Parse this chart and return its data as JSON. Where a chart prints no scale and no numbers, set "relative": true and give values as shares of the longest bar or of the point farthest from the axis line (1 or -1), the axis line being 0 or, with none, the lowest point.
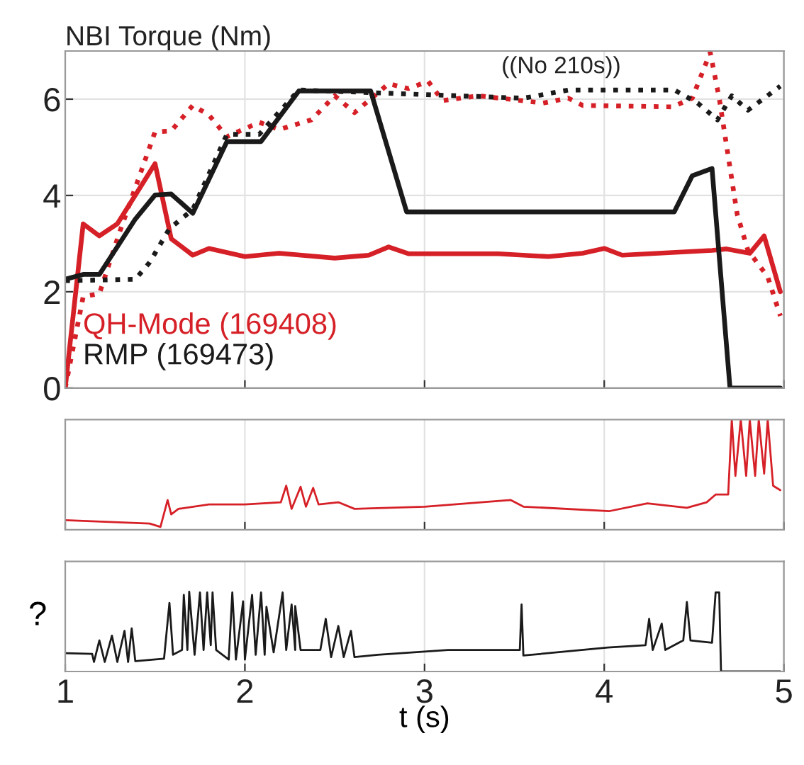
{
  "chart_data": [
    {
      "type": "line",
      "ylabel": "NBI Torque (Nm)",
      "xlim": [
        1,
        5
      ],
      "xticks": [
        1,
        2,
        3,
        4,
        5
      ],
      "ylim": [
        0,
        7
      ],
      "yticks": [
        0,
        2,
        4,
        6
      ],
      "grid": true,
      "legend": "bottom left",
      "tick_labels": "y",
      "annotations": [
        "((No 210s))"
      ],
      "series": [
        {
          "name": "QH-Mode (169408)",
          "color": "#d62027",
          "line_style": "solid",
          "x": [
            1,
            1.1,
            1.19,
            1.29,
            1.5,
            1.59,
            1.71,
            1.8,
            2.0,
            2.19,
            2.5,
            2.69,
            2.8,
            2.91,
            3.41,
            3.69,
            3.88,
            4.0,
            4.1,
            4.6,
            4.68,
            4.81,
            4.89,
            4.98
          ],
          "values": [
            0,
            3.41,
            3.16,
            3.41,
            4.66,
            3.1,
            2.76,
            2.9,
            2.73,
            2.8,
            2.7,
            2.76,
            2.93,
            2.79,
            2.79,
            2.73,
            2.8,
            2.9,
            2.76,
            2.86,
            2.89,
            2.8,
            3.16,
            2.0
          ]
        },
        {
          "color": "#d62027",
          "line_style": "dotted",
          "x": [
            1,
            1.1,
            1.19,
            1.3,
            1.5,
            1.59,
            1.71,
            1.8,
            1.9,
            2.08,
            2.19,
            2.37,
            2.5,
            2.61,
            2.8,
            2.91,
            3.02,
            3.1,
            3.3,
            3.66,
            3.8,
            3.88,
            4.38,
            4.49,
            4.59,
            4.64,
            4.74,
            4.8,
            4.91,
            4.98
          ],
          "values": [
            0,
            1.9,
            1.96,
            3.21,
            5.32,
            5.34,
            5.87,
            5.67,
            5.22,
            5.52,
            5.37,
            5.57,
            6.07,
            5.72,
            6.32,
            6.22,
            6.37,
            5.97,
            6.07,
            5.92,
            6.02,
            5.87,
            5.84,
            6.02,
            6.97,
            6.02,
            3.61,
            2.86,
            2.31,
            1.5
          ]
        },
        {
          "name": "RMP (169473)",
          "color": "#1a1a1a",
          "line_style": "solid",
          "x": [
            1,
            1.1,
            1.19,
            1.39,
            1.5,
            1.59,
            1.71,
            1.9,
            2.09,
            2.3,
            2.7,
            2.9,
            4.39,
            4.49,
            4.6,
            4.7,
            4.98
          ],
          "values": [
            2.26,
            2.36,
            2.36,
            3.51,
            4.01,
            4.03,
            3.63,
            5.12,
            5.12,
            6.17,
            6.17,
            3.66,
            3.66,
            4.41,
            4.56,
            0,
            0
          ]
        },
        {
          "color": "#1a1a1a",
          "line_style": "dotted",
          "x": [
            1,
            1.39,
            1.47,
            1.58,
            1.71,
            1.9,
            2.08,
            2.3,
            3.55,
            3.8,
            4.39,
            4.52,
            4.63,
            4.71,
            4.8,
            4.98
          ],
          "values": [
            2.23,
            2.26,
            2.61,
            3.31,
            3.71,
            5.27,
            5.27,
            6.19,
            6.02,
            6.19,
            6.19,
            5.92,
            5.57,
            6.07,
            5.77,
            6.27
          ]
        }
      ]
    },
    {
      "type": "line",
      "relative": true,
      "xlim": [
        1,
        5
      ],
      "xticks": [
        1,
        2,
        3,
        4,
        5
      ],
      "grid": "x",
      "tick_labels": false,
      "series": [
        {
          "color": "#d62027",
          "line_style": "solid",
          "x": [
            1.0,
            1.47,
            1.53,
            1.57,
            1.59,
            1.63,
            1.8,
            2.0,
            2.2,
            2.23,
            2.26,
            2.31,
            2.34,
            2.38,
            2.41,
            2.52,
            2.61,
            3.0,
            3.48,
            3.55,
            4.03,
            4.24,
            4.46,
            4.57,
            4.62,
            4.69,
            4.71,
            4.73,
            4.76,
            4.79,
            4.81,
            4.84,
            4.86,
            4.89,
            4.91,
            4.94,
            4.98
          ],
          "values": [
            0.087,
            0.057,
            0.026,
            0.27,
            0.14,
            0.19,
            0.23,
            0.23,
            0.25,
            0.4,
            0.19,
            0.39,
            0.21,
            0.38,
            0.23,
            0.25,
            0.19,
            0.21,
            0.27,
            0.21,
            0.17,
            0.24,
            0.2,
            0.25,
            0.32,
            0.32,
            1.0,
            0.49,
            1.0,
            0.49,
            1.0,
            0.49,
            1.0,
            0.51,
            1.0,
            0.4,
            0.36
          ]
        }
      ]
    },
    {
      "type": "line",
      "relative": true,
      "ylabel": "?",
      "xlabel": "t (s)",
      "xlim": [
        1,
        5
      ],
      "xticks": [
        1,
        2,
        3,
        4,
        5
      ],
      "grid": "x",
      "tick_labels": "x",
      "series": [
        {
          "color": "#1a1a1a",
          "line_style": "solid",
          "x": [
            1.0,
            1.15,
            1.16,
            1.19,
            1.22,
            1.26,
            1.29,
            1.33,
            1.35,
            1.37,
            1.39,
            1.55,
            1.58,
            1.6,
            1.65,
            1.66,
            1.68,
            1.69,
            1.72,
            1.75,
            1.77,
            1.79,
            1.81,
            1.82,
            1.84,
            1.91,
            1.93,
            1.95,
            1.99,
            2.0,
            2.04,
            2.06,
            2.09,
            2.11,
            2.12,
            2.16,
            2.21,
            2.23,
            2.26,
            2.28,
            2.28,
            2.31,
            2.42,
            2.45,
            2.48,
            2.52,
            2.55,
            2.59,
            2.61,
            2.74,
            3.13,
            3.53,
            3.54,
            3.55,
            4.02,
            4.23,
            4.25,
            4.27,
            4.32,
            4.34,
            4.44,
            4.46,
            4.48,
            4.6,
            4.62,
            4.64,
            4.65,
            4.98
          ],
          "values": [
            0.23,
            0.22,
            0.12,
            0.39,
            0.12,
            0.45,
            0.12,
            0.51,
            0.12,
            0.54,
            0.13,
            0.16,
            0.86,
            0.21,
            0.27,
            0.96,
            0.27,
            1.0,
            0.21,
            0.99,
            0.27,
            0.99,
            0.33,
            0.99,
            0.27,
            0.15,
            0.99,
            0.15,
            0.88,
            0.15,
            0.96,
            0.21,
            0.99,
            0.21,
            0.81,
            0.24,
            0.99,
            0.27,
            0.84,
            0.27,
            0.82,
            0.27,
            0.27,
            0.66,
            0.18,
            0.57,
            0.18,
            0.51,
            0.18,
            0.21,
            0.27,
            0.27,
            0.84,
            0.2,
            0.3,
            0.33,
            0.66,
            0.27,
            0.6,
            0.27,
            0.39,
            0.87,
            0.39,
            0.36,
            0.99,
            0.99,
            0,
            0
          ]
        }
      ]
    }
  ]
}
